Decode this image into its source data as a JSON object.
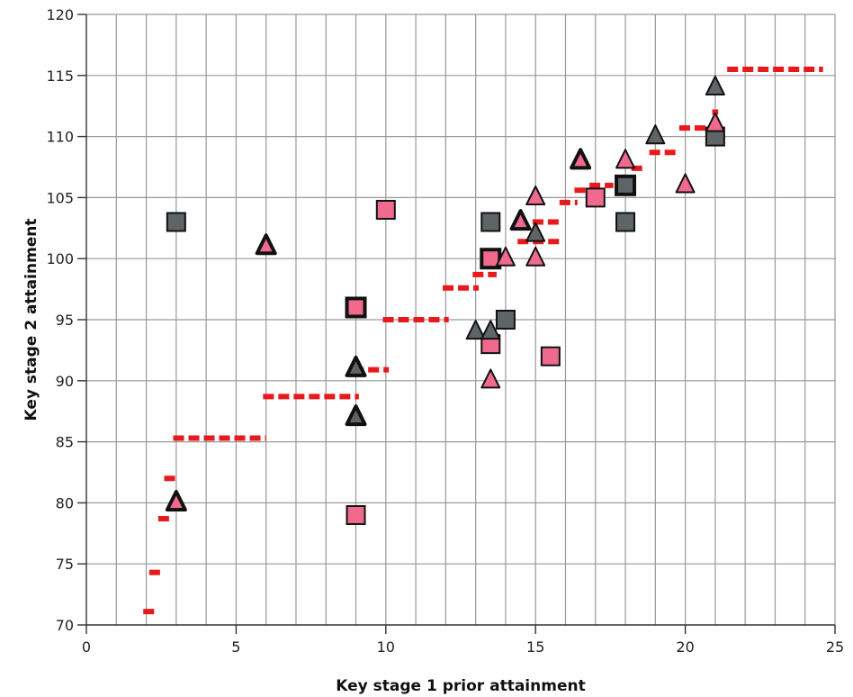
{
  "chart_data": {
    "type": "scatter",
    "title": "",
    "xlabel": "Key stage 1 prior attainment",
    "ylabel": "Key stage 2 attainment",
    "xlim": [
      0,
      25
    ],
    "ylim": [
      70,
      120
    ],
    "x_ticks": [
      0,
      5,
      10,
      15,
      20,
      25
    ],
    "y_ticks": [
      70,
      75,
      80,
      85,
      90,
      95,
      100,
      105,
      110,
      115,
      120
    ],
    "x_tick_labels": [
      "0",
      "5",
      "10",
      "15",
      "20",
      "25"
    ],
    "y_tick_labels": [
      "70",
      "75",
      "80",
      "85",
      "90",
      "95",
      "100",
      "105",
      "110",
      "115",
      "120"
    ],
    "minor_x_grid_step": 1,
    "grid": true,
    "legend": "none",
    "colors": {
      "pink": "#f06a8e",
      "grey": "#5f6467",
      "reference": "#e8191b",
      "outline": "#111111",
      "grid": "#999999"
    },
    "series": [
      {
        "marker": "square",
        "color": "pink",
        "points": [
          {
            "x": 10.0,
            "y": 104,
            "bold": false
          },
          {
            "x": 9.0,
            "y": 96,
            "bold": true
          },
          {
            "x": 13.5,
            "y": 100,
            "bold": true
          },
          {
            "x": 13.5,
            "y": 93,
            "bold": false
          },
          {
            "x": 15.5,
            "y": 92,
            "bold": false
          },
          {
            "x": 17.0,
            "y": 105,
            "bold": false
          },
          {
            "x": 9.0,
            "y": 79,
            "bold": false
          }
        ]
      },
      {
        "marker": "square",
        "color": "grey",
        "points": [
          {
            "x": 3.0,
            "y": 103,
            "bold": false
          },
          {
            "x": 13.5,
            "y": 103,
            "bold": false
          },
          {
            "x": 14.0,
            "y": 95,
            "bold": false
          },
          {
            "x": 18.0,
            "y": 106,
            "bold": true
          },
          {
            "x": 18.0,
            "y": 103,
            "bold": false
          },
          {
            "x": 21.0,
            "y": 110,
            "bold": false
          }
        ]
      },
      {
        "marker": "triangle",
        "color": "pink",
        "points": [
          {
            "x": 6.0,
            "y": 101,
            "bold": true
          },
          {
            "x": 3.0,
            "y": 80,
            "bold": true
          },
          {
            "x": 14.0,
            "y": 100,
            "bold": false
          },
          {
            "x": 14.5,
            "y": 103,
            "bold": true
          },
          {
            "x": 15.0,
            "y": 105,
            "bold": false
          },
          {
            "x": 15.0,
            "y": 100,
            "bold": false
          },
          {
            "x": 16.5,
            "y": 108,
            "bold": true
          },
          {
            "x": 18.0,
            "y": 108,
            "bold": false
          },
          {
            "x": 20.0,
            "y": 106,
            "bold": false
          },
          {
            "x": 21.0,
            "y": 111,
            "bold": false
          },
          {
            "x": 13.5,
            "y": 90,
            "bold": false
          }
        ]
      },
      {
        "marker": "triangle",
        "color": "grey",
        "points": [
          {
            "x": 9.0,
            "y": 91,
            "bold": true
          },
          {
            "x": 9.0,
            "y": 87,
            "bold": true
          },
          {
            "x": 13.0,
            "y": 94,
            "bold": false
          },
          {
            "x": 13.5,
            "y": 94,
            "bold": false
          },
          {
            "x": 15.0,
            "y": 102,
            "bold": false
          },
          {
            "x": 19.0,
            "y": 110,
            "bold": false
          },
          {
            "x": 21.0,
            "y": 114,
            "bold": false
          }
        ]
      }
    ],
    "reference_line": {
      "style": "dashed",
      "color": "reference",
      "segments": [
        {
          "x0": 1.9,
          "x1": 2.3,
          "y": 71.1
        },
        {
          "x0": 2.1,
          "x1": 2.6,
          "y": 74.3
        },
        {
          "x0": 2.4,
          "x1": 2.8,
          "y": 78.7
        },
        {
          "x0": 2.6,
          "x1": 3.1,
          "y": 82.0
        },
        {
          "x0": 2.9,
          "x1": 6.0,
          "y": 85.3
        },
        {
          "x0": 5.9,
          "x1": 9.1,
          "y": 88.7
        },
        {
          "x0": 8.9,
          "x1": 10.1,
          "y": 90.9
        },
        {
          "x0": 9.9,
          "x1": 12.1,
          "y": 95.0
        },
        {
          "x0": 11.9,
          "x1": 13.1,
          "y": 97.6
        },
        {
          "x0": 12.9,
          "x1": 13.7,
          "y": 98.7
        },
        {
          "x0": 14.4,
          "x1": 15.8,
          "y": 101.4
        },
        {
          "x0": 14.9,
          "x1": 15.8,
          "y": 103.0
        },
        {
          "x0": 15.8,
          "x1": 16.4,
          "y": 104.6
        },
        {
          "x0": 16.3,
          "x1": 17.1,
          "y": 105.6
        },
        {
          "x0": 16.8,
          "x1": 17.6,
          "y": 106.0
        },
        {
          "x0": 18.2,
          "x1": 18.7,
          "y": 107.4
        },
        {
          "x0": 18.8,
          "x1": 19.7,
          "y": 108.7
        },
        {
          "x0": 19.8,
          "x1": 20.8,
          "y": 110.7
        },
        {
          "x0": 20.9,
          "x1": 21.1,
          "y": 112.0
        },
        {
          "x0": 21.4,
          "x1": 24.6,
          "y": 115.5
        }
      ]
    }
  }
}
